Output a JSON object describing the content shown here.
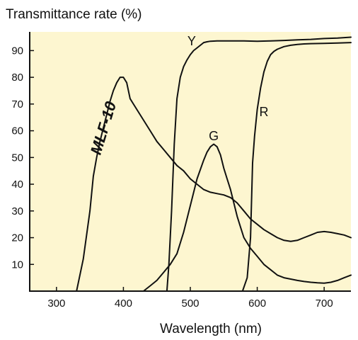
{
  "chart_data": {
    "type": "line",
    "title": "",
    "ylabel": "Transmittance rate (%)",
    "xlabel": "Wavelength (nm)",
    "xlim": [
      260,
      740
    ],
    "ylim": [
      0,
      97
    ],
    "xticks": [
      300,
      400,
      500,
      600,
      700
    ],
    "xtick_labels": [
      "300",
      "400",
      "500",
      "600",
      "700"
    ],
    "yticks": [
      10,
      20,
      30,
      40,
      50,
      60,
      70,
      80,
      90
    ],
    "ytick_labels": [
      "10",
      "20",
      "30",
      "40",
      "50",
      "60",
      "70",
      "80",
      "90"
    ],
    "grid": false,
    "colors": {
      "background": "#fdf6d0",
      "line": "#111111",
      "axis": "#111111"
    },
    "series": [
      {
        "name": "MLF-10",
        "label_at": [
          370,
          61
        ],
        "label_rotation": -73,
        "x": [
          330,
          340,
          350,
          355,
          360,
          365,
          370,
          375,
          380,
          385,
          390,
          395,
          400,
          405,
          410,
          415,
          420,
          430,
          440,
          450,
          460,
          470,
          480,
          490,
          500,
          510,
          520,
          530,
          540,
          550,
          560,
          570,
          580,
          590,
          600,
          610,
          620,
          630,
          640,
          650,
          660,
          670,
          680,
          690,
          700,
          710,
          720,
          730,
          740
        ],
        "y": [
          0,
          12,
          30,
          43,
          50,
          56,
          61,
          66,
          71,
          75,
          78,
          80,
          80,
          78,
          72,
          70,
          68,
          64,
          60,
          56,
          53,
          50,
          47,
          45,
          42,
          40,
          38,
          37,
          36.5,
          36,
          35,
          33,
          30,
          27,
          25,
          23,
          21.5,
          20,
          19,
          18.6,
          19,
          20,
          21,
          22,
          22.3,
          22,
          21.5,
          21,
          20
        ]
      },
      {
        "name": "Y",
        "label_at": [
          502,
          93.5
        ],
        "x": [
          465,
          468,
          472,
          476,
          480,
          485,
          490,
          495,
          500,
          505,
          510,
          515,
          520,
          525,
          530,
          540,
          560,
          580,
          600,
          620,
          640,
          660,
          680,
          700,
          720,
          740
        ],
        "y": [
          0,
          10,
          30,
          55,
          72,
          80,
          84,
          86.5,
          88.5,
          90,
          91,
          92,
          93,
          93.3,
          93.5,
          93.6,
          93.6,
          93.6,
          93.5,
          93.6,
          93.8,
          94,
          94.2,
          94.5,
          94.7,
          95
        ]
      },
      {
        "name": "G",
        "label_at": [
          535,
          58
        ],
        "x": [
          430,
          440,
          450,
          460,
          470,
          480,
          490,
          500,
          510,
          520,
          525,
          530,
          535,
          540,
          545,
          550,
          555,
          560,
          565,
          570,
          575,
          580,
          590,
          600,
          610,
          620,
          630,
          640,
          650,
          660,
          670,
          680,
          690,
          700,
          710,
          720,
          730,
          740
        ],
        "y": [
          0,
          2,
          4,
          7,
          10,
          14,
          22,
          32,
          42,
          49,
          52,
          54,
          55,
          54,
          51,
          46,
          42,
          38,
          33,
          28,
          24,
          20,
          16,
          13,
          10,
          8,
          6,
          5,
          4.5,
          4,
          3.6,
          3.3,
          3.1,
          3,
          3.3,
          4,
          5,
          6
        ]
      },
      {
        "name": "R",
        "label_at": [
          610,
          67
        ],
        "x": [
          578,
          585,
          590,
          593,
          596,
          600,
          605,
          610,
          615,
          620,
          625,
          630,
          640,
          650,
          660,
          670,
          680,
          700,
          720,
          740
        ],
        "y": [
          0,
          5,
          20,
          48,
          58,
          68,
          76,
          82,
          86,
          88.5,
          89.7,
          90.5,
          91.5,
          92,
          92.3,
          92.5,
          92.6,
          92.7,
          92.8,
          93
        ]
      }
    ]
  }
}
